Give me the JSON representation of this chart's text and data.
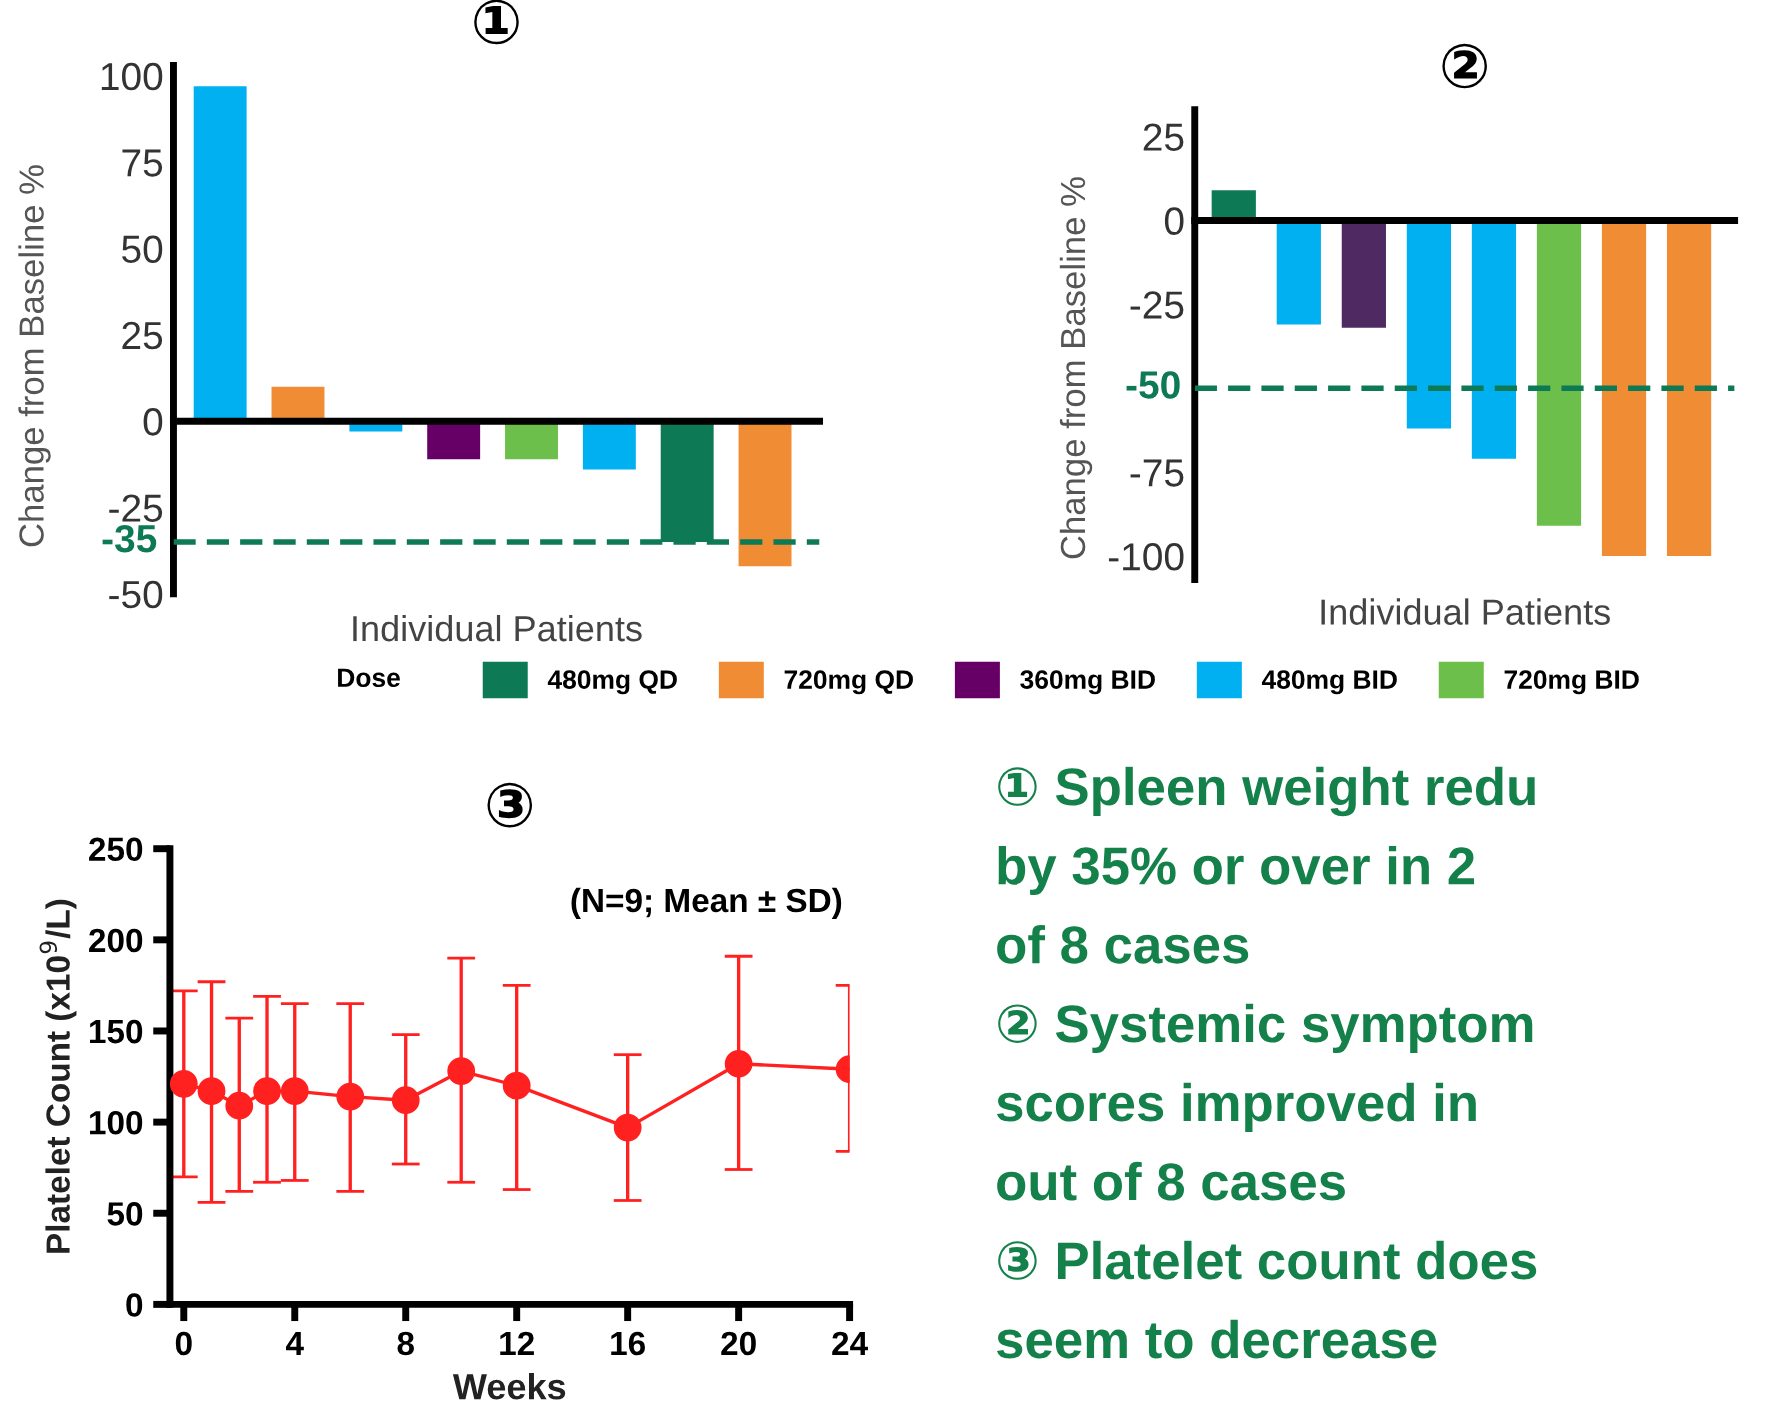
{
  "chart_data": [
    {
      "type": "bar",
      "title": "①",
      "xlabel": "Individual Patients",
      "ylabel": "Change from Baseline %",
      "categories": [
        null,
        null,
        null,
        null,
        null,
        null,
        null,
        null
      ],
      "tick_labels": "y",
      "legend": "bottom",
      "legend_title": "Dose",
      "series": [
        {
          "name": "480mg QD",
          "color": "#0e7a55",
          "values": [
            null,
            null,
            null,
            null,
            null,
            null,
            -35,
            null
          ]
        },
        {
          "name": "720mg QD",
          "color": "#ef8c34",
          "values": [
            null,
            10,
            null,
            null,
            null,
            null,
            null,
            -42
          ]
        },
        {
          "name": "360mg BID",
          "color": "#660066",
          "values": [
            null,
            null,
            null,
            -11,
            null,
            null,
            null,
            null
          ]
        },
        {
          "name": "480mg BID",
          "color": "#00b0f0",
          "values": [
            97,
            null,
            -3,
            null,
            null,
            -14,
            null,
            null
          ]
        },
        {
          "name": "720mg BID",
          "color": "#6cbf4a",
          "values": [
            null,
            null,
            null,
            null,
            -11,
            null,
            null,
            null
          ]
        }
      ],
      "ylim": [
        -50,
        103
      ],
      "yticks": [
        -50,
        -25,
        0,
        25,
        50,
        75,
        100
      ],
      "ref_lines": [
        {
          "axis": "y",
          "value": -35,
          "label": "-35",
          "color": "#0e7a55",
          "line_style": "dashed"
        }
      ]
    },
    {
      "type": "bar",
      "title": "②",
      "xlabel": "Individual Patients",
      "ylabel": "Change from Baseline %",
      "categories": [
        null,
        null,
        null,
        null,
        null,
        null,
        null,
        null
      ],
      "tick_labels": "y",
      "series": [
        {
          "color": "#0e7a55",
          "values": [
            9,
            null,
            null,
            null,
            null,
            null,
            null,
            null
          ]
        },
        {
          "color": "#ef8c34",
          "values": [
            null,
            null,
            null,
            null,
            null,
            null,
            -100,
            -100
          ]
        },
        {
          "color": "#4f2a62",
          "values": [
            null,
            null,
            -32,
            null,
            null,
            null,
            null,
            null
          ]
        },
        {
          "color": "#00b0f0",
          "values": [
            null,
            -31,
            null,
            -62,
            -71,
            null,
            null,
            null
          ]
        },
        {
          "color": "#6cbf4a",
          "values": [
            null,
            null,
            null,
            null,
            null,
            -91,
            null,
            null
          ]
        }
      ],
      "ylim": [
        -107,
        33
      ],
      "yticks": [
        -100,
        -75,
        -25,
        0,
        25
      ],
      "ref_lines": [
        {
          "axis": "y",
          "value": -50,
          "label": "-50",
          "color": "#0e7a55",
          "line_style": "dashed"
        }
      ]
    },
    {
      "type": "line",
      "title": "③",
      "xlabel": "Weeks",
      "ylabel": "Platelet Count (x10$^{9}$/L)",
      "annotations": [
        "(N=9; Mean ± SD)"
      ],
      "marker": "circle",
      "line_style": "solid",
      "grid": false,
      "x": [
        0,
        1,
        2,
        3,
        4,
        6,
        8,
        10,
        12,
        16,
        20,
        24
      ],
      "series": [
        {
          "color": "#ff2020",
          "values": [
            121,
            117,
            109,
            117,
            117,
            114,
            112,
            128,
            120,
            97,
            132,
            129
          ],
          "errors": [
            [
              70,
              172
            ],
            [
              56,
              177
            ],
            [
              62,
              157
            ],
            [
              67,
              169
            ],
            [
              68,
              165
            ],
            [
              62,
              165
            ],
            [
              77,
              148
            ],
            [
              67,
              190
            ],
            [
              63,
              175
            ],
            [
              57,
              137
            ],
            [
              74,
              191
            ],
            [
              84,
              175
            ]
          ]
        }
      ],
      "xlim": [
        -0.5,
        24
      ],
      "xticks": [
        0,
        4,
        8,
        12,
        16,
        20,
        24
      ],
      "ylim": [
        0,
        250
      ],
      "yticks": [
        0,
        50,
        100,
        150,
        200,
        250
      ]
    },
    {
      "type": "other",
      "annotations": [
        "① Spleen weight redu",
        "by 35% or over in 2",
        "of 8 cases",
        "② Systemic symptom",
        "scores improved in",
        "out of 8 cases",
        "③ Platelet count does",
        "seem to decrease"
      ]
    }
  ]
}
